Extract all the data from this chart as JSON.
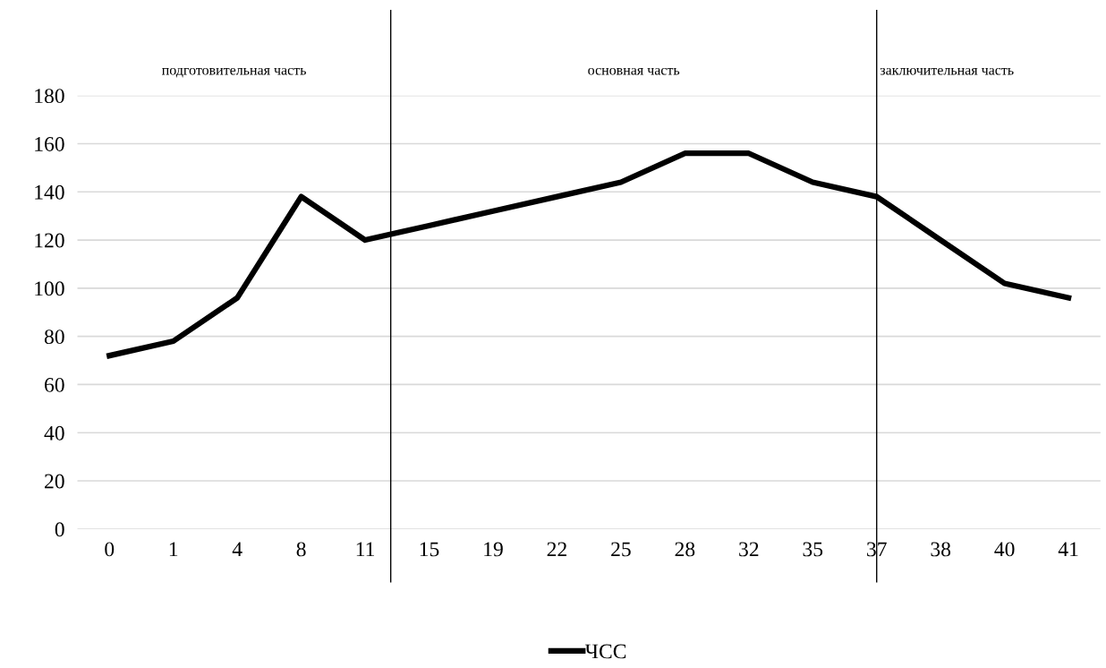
{
  "chart_data": {
    "type": "line",
    "categories": [
      "0",
      "1",
      "4",
      "8",
      "11",
      "15",
      "19",
      "22",
      "25",
      "28",
      "32",
      "35",
      "37",
      "38",
      "40",
      "41"
    ],
    "series": [
      {
        "name": "ЧСС",
        "color": "#000000",
        "values": [
          72,
          78,
          96,
          138,
          120,
          126,
          132,
          138,
          144,
          156,
          156,
          144,
          138,
          120,
          102,
          96
        ]
      }
    ],
    "ylim": [
      0,
      180
    ],
    "yticks": [
      0,
      20,
      40,
      60,
      80,
      100,
      120,
      140,
      160,
      180
    ],
    "grid": "y",
    "legend": "bottom",
    "marker": "none",
    "line_style": "solid",
    "ref_lines": [
      {
        "axis": "x",
        "value": "37",
        "color": "#000000"
      }
    ],
    "annotations": [
      "подготовительная часть",
      "основная часть",
      "заключительная часть"
    ]
  }
}
